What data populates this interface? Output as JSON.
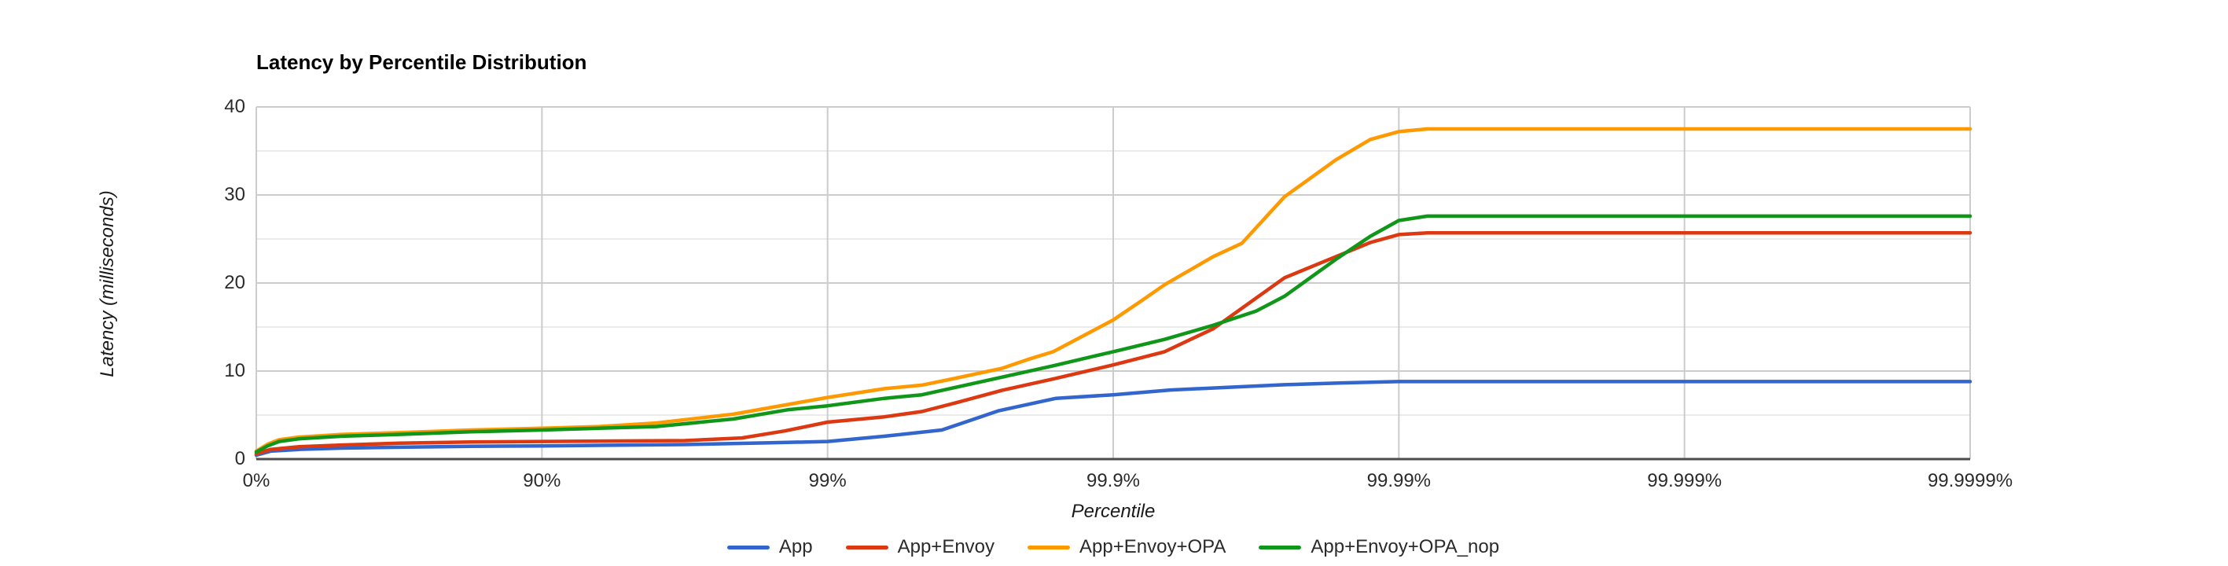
{
  "chart_data": {
    "type": "line",
    "title": "Latency by Percentile Distribution",
    "xlabel": "Percentile",
    "ylabel": "Latency (milliseconds)",
    "x_scale": "percentile-log (number of nines)",
    "x_tick_labels": [
      "0%",
      "90%",
      "99%",
      "99.9%",
      "99.99%",
      "99.999%",
      "99.9999%"
    ],
    "x_tick_nines": [
      0,
      1,
      2,
      3,
      4,
      5,
      6
    ],
    "xlim_nines": [
      0,
      6
    ],
    "ylim": [
      0,
      40
    ],
    "y_major_ticks": [
      0,
      10,
      20,
      30,
      40
    ],
    "y_minor_gridlines": [
      5,
      15,
      25,
      35
    ],
    "grid": true,
    "legend_position": "bottom",
    "background_color": "#ffffff",
    "grid_color": "#cccccc",
    "minor_grid_color": "#ebebeb",
    "axis_line_color": "#4d4d4d",
    "series": [
      {
        "name": "App",
        "color": "#3366CC",
        "points": [
          [
            0,
            0.45
          ],
          [
            0.05,
            0.9
          ],
          [
            0.15,
            1.1
          ],
          [
            0.3,
            1.25
          ],
          [
            0.5,
            1.35
          ],
          [
            0.75,
            1.45
          ],
          [
            1,
            1.5
          ],
          [
            1.5,
            1.65
          ],
          [
            1.8,
            1.85
          ],
          [
            2,
            2.0
          ],
          [
            2.2,
            2.6
          ],
          [
            2.4,
            3.3
          ],
          [
            2.5,
            4.4
          ],
          [
            2.6,
            5.5
          ],
          [
            2.8,
            6.9
          ],
          [
            3,
            7.3
          ],
          [
            3.2,
            7.85
          ],
          [
            3.4,
            8.15
          ],
          [
            3.6,
            8.45
          ],
          [
            3.8,
            8.65
          ],
          [
            4,
            8.8
          ],
          [
            4.5,
            8.8
          ],
          [
            5,
            8.8
          ],
          [
            6,
            8.8
          ]
        ]
      },
      {
        "name": "App+Envoy",
        "color": "#DC3912",
        "points": [
          [
            0,
            0.6
          ],
          [
            0.05,
            1.1
          ],
          [
            0.15,
            1.4
          ],
          [
            0.3,
            1.6
          ],
          [
            0.5,
            1.8
          ],
          [
            0.75,
            1.95
          ],
          [
            1,
            2.0
          ],
          [
            1.5,
            2.1
          ],
          [
            1.7,
            2.4
          ],
          [
            1.85,
            3.2
          ],
          [
            2,
            4.2
          ],
          [
            2.2,
            4.8
          ],
          [
            2.33,
            5.4
          ],
          [
            2.45,
            6.4
          ],
          [
            2.61,
            7.8
          ],
          [
            2.79,
            9.1
          ],
          [
            3,
            10.7
          ],
          [
            3.18,
            12.2
          ],
          [
            3.35,
            14.8
          ],
          [
            3.6,
            20.6
          ],
          [
            3.78,
            23.0
          ],
          [
            3.9,
            24.6
          ],
          [
            4,
            25.5
          ],
          [
            4.1,
            25.7
          ],
          [
            5,
            25.7
          ],
          [
            6,
            25.7
          ]
        ]
      },
      {
        "name": "App+Envoy+OPA",
        "color": "#FF9900",
        "points": [
          [
            0,
            0.9
          ],
          [
            0.04,
            1.7
          ],
          [
            0.08,
            2.2
          ],
          [
            0.15,
            2.5
          ],
          [
            0.3,
            2.8
          ],
          [
            0.5,
            3.0
          ],
          [
            0.75,
            3.3
          ],
          [
            1,
            3.5
          ],
          [
            1.2,
            3.7
          ],
          [
            1.4,
            4.1
          ],
          [
            1.67,
            5.1
          ],
          [
            1.86,
            6.2
          ],
          [
            2,
            7.0
          ],
          [
            2.2,
            8.0
          ],
          [
            2.33,
            8.4
          ],
          [
            2.45,
            9.2
          ],
          [
            2.61,
            10.3
          ],
          [
            2.71,
            11.4
          ],
          [
            2.79,
            12.2
          ],
          [
            3,
            15.8
          ],
          [
            3.1,
            18.0
          ],
          [
            3.18,
            19.8
          ],
          [
            3.35,
            23.0
          ],
          [
            3.45,
            24.5
          ],
          [
            3.6,
            29.8
          ],
          [
            3.78,
            34.0
          ],
          [
            3.9,
            36.3
          ],
          [
            4,
            37.2
          ],
          [
            4.1,
            37.5
          ],
          [
            5,
            37.5
          ],
          [
            6,
            37.5
          ]
        ]
      },
      {
        "name": "App+Envoy+OPA_nop",
        "color": "#109618",
        "points": [
          [
            0,
            0.8
          ],
          [
            0.04,
            1.5
          ],
          [
            0.08,
            2.0
          ],
          [
            0.15,
            2.3
          ],
          [
            0.3,
            2.6
          ],
          [
            0.5,
            2.8
          ],
          [
            0.75,
            3.1
          ],
          [
            1,
            3.3
          ],
          [
            1.4,
            3.7
          ],
          [
            1.67,
            4.55
          ],
          [
            1.86,
            5.6
          ],
          [
            2,
            6.05
          ],
          [
            2.2,
            6.9
          ],
          [
            2.33,
            7.3
          ],
          [
            2.61,
            9.3
          ],
          [
            2.79,
            10.6
          ],
          [
            3,
            12.2
          ],
          [
            3.18,
            13.6
          ],
          [
            3.35,
            15.2
          ],
          [
            3.5,
            16.8
          ],
          [
            3.6,
            18.5
          ],
          [
            3.78,
            22.7
          ],
          [
            3.9,
            25.3
          ],
          [
            4,
            27.1
          ],
          [
            4.1,
            27.6
          ],
          [
            5,
            27.6
          ],
          [
            6,
            27.6
          ]
        ]
      }
    ]
  }
}
